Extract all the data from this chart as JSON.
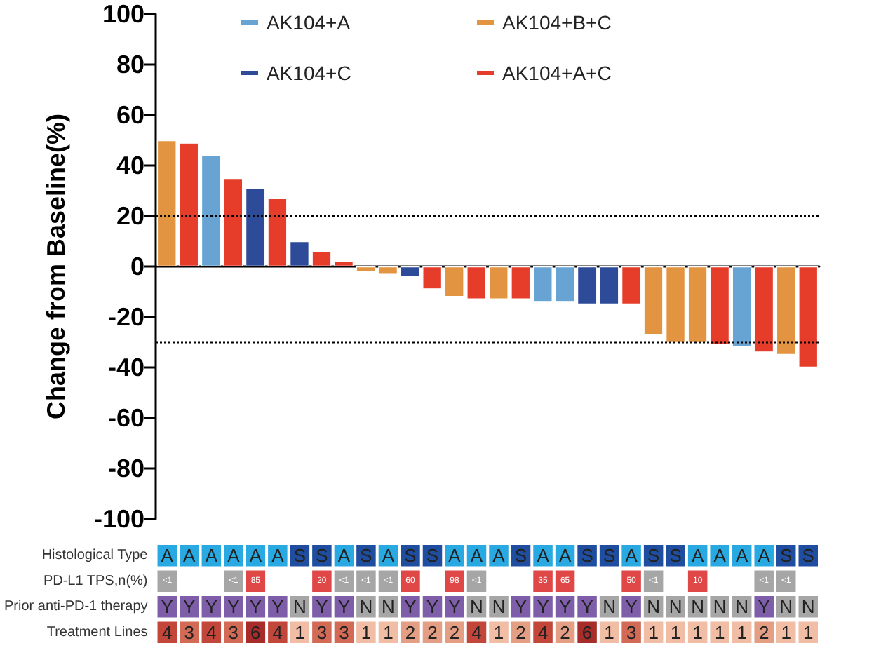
{
  "chart_data": [
    {
      "type": "bar",
      "ylabel": "Change from Baseline(%)",
      "categories": [
        null,
        null,
        null,
        null,
        null,
        null,
        null,
        null,
        null,
        null,
        null,
        null,
        null,
        null,
        null,
        null,
        null,
        null,
        null,
        null,
        null,
        null,
        null,
        null,
        null,
        null,
        null,
        null,
        null,
        null
      ],
      "series": [
        {
          "name": "AK104+A",
          "color": "#67a3d3",
          "values": [
            null,
            null,
            44,
            null,
            null,
            null,
            null,
            null,
            null,
            null,
            null,
            null,
            null,
            null,
            null,
            null,
            null,
            -14,
            -14,
            null,
            null,
            null,
            null,
            null,
            null,
            null,
            -32,
            null,
            null,
            null
          ]
        },
        {
          "name": "AK104+B+C",
          "color": "#e39440",
          "values": [
            50,
            null,
            null,
            null,
            null,
            null,
            null,
            null,
            null,
            -2,
            -3,
            null,
            null,
            -12,
            null,
            -13,
            null,
            null,
            null,
            null,
            null,
            null,
            -27,
            -30,
            -30,
            null,
            null,
            null,
            -35,
            null
          ]
        },
        {
          "name": "AK104+C",
          "color": "#2e4b9a",
          "values": [
            null,
            null,
            null,
            null,
            31,
            null,
            10,
            null,
            null,
            null,
            null,
            -4,
            null,
            null,
            null,
            null,
            null,
            null,
            null,
            -15,
            -15,
            null,
            null,
            null,
            null,
            null,
            null,
            null,
            null,
            null
          ]
        },
        {
          "name": "AK104+A+C",
          "color": "#e63c2a",
          "values": [
            null,
            49,
            null,
            35,
            null,
            27,
            null,
            6,
            2,
            null,
            null,
            null,
            -9,
            null,
            -13,
            null,
            -13,
            null,
            null,
            null,
            null,
            -15,
            null,
            null,
            null,
            -31,
            null,
            -34,
            null,
            -40
          ]
        }
      ],
      "ylim": [
        -100,
        100
      ],
      "yticks": [
        -100,
        -80,
        -60,
        -40,
        -20,
        0,
        20,
        40,
        60,
        80,
        100
      ],
      "ref_lines": [
        {
          "axis": "y",
          "value": 20,
          "line_style": "dotted",
          "color": "#000000"
        },
        {
          "axis": "y",
          "value": -30,
          "line_style": "dotted",
          "color": "#000000"
        }
      ],
      "legend": "top",
      "grid": false
    },
    {
      "type": "heatmap",
      "categories": [
        null,
        null,
        null,
        null,
        null,
        null,
        null,
        null,
        null,
        null,
        null,
        null,
        null,
        null,
        null,
        null,
        null,
        null,
        null,
        null,
        null,
        null,
        null,
        null,
        null,
        null,
        null,
        null,
        null,
        null
      ],
      "y_categories": [
        "Histological Type",
        "PD-L1 TPS,n(%)",
        "Prior anti-PD-1 therapy",
        "Treatment Lines"
      ],
      "cells": [
        [
          null,
          null,
          null,
          null,
          null,
          null,
          null,
          null,
          null,
          null,
          null,
          null,
          null,
          null,
          null,
          null,
          null,
          null,
          null,
          null,
          null,
          null,
          null,
          null,
          null,
          null,
          null,
          null,
          null,
          null
        ],
        [
          null,
          null,
          null,
          null,
          null,
          null,
          null,
          null,
          null,
          null,
          null,
          null,
          null,
          null,
          null,
          null,
          null,
          null,
          null,
          null,
          null,
          null,
          null,
          null,
          null,
          null,
          null,
          null,
          null,
          null
        ],
        [
          null,
          null,
          null,
          null,
          null,
          null,
          null,
          null,
          null,
          null,
          null,
          null,
          null,
          null,
          null,
          null,
          null,
          null,
          null,
          null,
          null,
          null,
          null,
          null,
          null,
          null,
          null,
          null,
          null,
          null
        ],
        [
          null,
          null,
          null,
          null,
          null,
          null,
          null,
          null,
          null,
          null,
          null,
          null,
          null,
          null,
          null,
          null,
          null,
          null,
          null,
          null,
          null,
          null,
          null,
          null,
          null,
          null,
          null,
          null,
          null,
          null
        ]
      ],
      "cell_labels": [
        [
          "A",
          "A",
          "A",
          "A",
          "A",
          "A",
          "S",
          "S",
          "A",
          "S",
          "A",
          "S",
          "S",
          "A",
          "A",
          "A",
          "S",
          "A",
          "A",
          "S",
          "S",
          "A",
          "S",
          "S",
          "A",
          "A",
          "A",
          "A",
          "S",
          "S"
        ],
        [
          "<1",
          null,
          null,
          "<1",
          "85",
          null,
          null,
          "20",
          "<1",
          "<1",
          "<1",
          "60",
          null,
          "98",
          "<1",
          null,
          null,
          "35",
          "65",
          null,
          null,
          "50",
          "<1",
          null,
          "10",
          null,
          null,
          "<1",
          "<1",
          null
        ],
        [
          "Y",
          "Y",
          "Y",
          "Y",
          "Y",
          "Y",
          "N",
          "Y",
          "Y",
          "N",
          "N",
          "Y",
          "Y",
          "Y",
          "N",
          "N",
          "Y",
          "Y",
          "Y",
          "Y",
          "N",
          "Y",
          "N",
          "N",
          "N",
          "N",
          "N",
          "Y",
          "N",
          "N"
        ],
        [
          "4",
          "3",
          "4",
          "3",
          "6",
          "4",
          "1",
          "3",
          "3",
          "1",
          "1",
          "2",
          "2",
          "2",
          "4",
          "1",
          "2",
          "4",
          "2",
          "6",
          "1",
          "3",
          "1",
          "1",
          "1",
          "1",
          "1",
          "2",
          "1",
          "1"
        ]
      ],
      "colors": [
        [
          "#29a9e1",
          "#29a9e1",
          "#29a9e1",
          "#29a9e1",
          "#29a9e1",
          "#29a9e1",
          "#1f4ea0",
          "#1f4ea0",
          "#29a9e1",
          "#1f4ea0",
          "#29a9e1",
          "#1f4ea0",
          "#1f4ea0",
          "#29a9e1",
          "#29a9e1",
          "#29a9e1",
          "#1f4ea0",
          "#29a9e1",
          "#29a9e1",
          "#1f4ea0",
          "#1f4ea0",
          "#29a9e1",
          "#1f4ea0",
          "#1f4ea0",
          "#29a9e1",
          "#29a9e1",
          "#29a9e1",
          "#29a9e1",
          "#1f4ea0",
          "#1f4ea0"
        ],
        [
          "#a6a6a6",
          null,
          null,
          "#a6a6a6",
          "#e04848",
          null,
          null,
          "#e04848",
          "#a6a6a6",
          "#a6a6a6",
          "#a6a6a6",
          "#e04848",
          null,
          "#e04848",
          "#a6a6a6",
          null,
          null,
          "#e04848",
          "#e04848",
          null,
          null,
          "#e04848",
          "#a6a6a6",
          null,
          "#e04848",
          null,
          null,
          "#a6a6a6",
          "#a6a6a6",
          null
        ],
        [
          "#7e5ea8",
          "#7e5ea8",
          "#7e5ea8",
          "#7e5ea8",
          "#7e5ea8",
          "#7e5ea8",
          "#a6a6a6",
          "#7e5ea8",
          "#7e5ea8",
          "#a6a6a6",
          "#a6a6a6",
          "#7e5ea8",
          "#7e5ea8",
          "#7e5ea8",
          "#a6a6a6",
          "#a6a6a6",
          "#7e5ea8",
          "#7e5ea8",
          "#7e5ea8",
          "#7e5ea8",
          "#a6a6a6",
          "#7e5ea8",
          "#a6a6a6",
          "#a6a6a6",
          "#a6a6a6",
          "#a6a6a6",
          "#a6a6a6",
          "#7e5ea8",
          "#a6a6a6",
          "#a6a6a6"
        ],
        [
          "#c2463a",
          "#d26a56",
          "#c2463a",
          "#d26a56",
          "#a82c2a",
          "#c2463a",
          "#f1bda4",
          "#d26a56",
          "#d26a56",
          "#f1bda4",
          "#f1bda4",
          "#e49e84",
          "#e49e84",
          "#e49e84",
          "#c2463a",
          "#f1bda4",
          "#e49e84",
          "#c2463a",
          "#e49e84",
          "#a82c2a",
          "#f1bda4",
          "#d26a56",
          "#f1bda4",
          "#f1bda4",
          "#f1bda4",
          "#f1bda4",
          "#f1bda4",
          "#e49e84",
          "#f1bda4",
          "#f1bda4"
        ]
      ]
    }
  ]
}
